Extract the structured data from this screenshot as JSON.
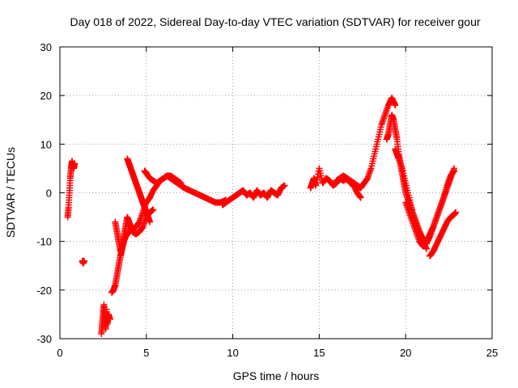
{
  "chart_data": {
    "type": "scatter",
    "title": "Day 018 of 2022, Sidereal Day-to-day VTEC variation (SDTVAR) for receiver gour",
    "xlabel": "GPS time / hours",
    "ylabel": "SDTVAR / TECUs",
    "xlim": [
      0,
      25
    ],
    "ylim": [
      -30,
      30
    ],
    "xticks": [
      0,
      5,
      10,
      15,
      20,
      25
    ],
    "yticks": [
      -30,
      -20,
      -10,
      0,
      10,
      20,
      30
    ],
    "xtick_labels": [
      "0",
      "5",
      "10",
      "15",
      "20",
      "25"
    ],
    "ytick_labels": [
      "-30",
      "-20",
      "-10",
      "0",
      "10",
      "20",
      "30"
    ],
    "grid": true,
    "marker": "+",
    "color": "#ff0000",
    "series": [
      {
        "name": "seg1",
        "x": [
          0.45,
          0.5,
          0.55,
          0.6,
          0.65,
          0.7,
          0.75,
          0.8,
          0.85
        ],
        "y": [
          -5,
          -3,
          0,
          3,
          5,
          6.5,
          5.5,
          5,
          6
        ]
      },
      {
        "name": "seg2",
        "x": [
          1.3,
          1.35,
          1.4
        ],
        "y": [
          -14,
          -14.5,
          -14
        ]
      },
      {
        "name": "seg3",
        "x": [
          2.4,
          2.45,
          2.5,
          2.55,
          2.6,
          2.65,
          2.7,
          2.75,
          2.8,
          2.9
        ],
        "y": [
          -29,
          -27,
          -25,
          -23,
          -26,
          -28,
          -24,
          -27,
          -25,
          -26
        ]
      },
      {
        "name": "seg4",
        "x": [
          3.0,
          3.1,
          3.2,
          3.3,
          3.4,
          3.5,
          3.6,
          3.7,
          3.8,
          3.9,
          4.0,
          4.2,
          4.4,
          4.6,
          4.8,
          5.0,
          5.2,
          5.4,
          5.6,
          5.8,
          6.0,
          6.2,
          6.4,
          6.6,
          6.8,
          7.0,
          7.2,
          7.5,
          7.8,
          8.1,
          8.4,
          8.7,
          9.0,
          9.3,
          9.6
        ],
        "y": [
          -20.5,
          -20,
          -19,
          -17,
          -15,
          -13,
          -11.5,
          -10,
          -9,
          -8.5,
          -8,
          -7.5,
          -7,
          -6,
          -4,
          -2,
          -1,
          0.5,
          1.5,
          2.5,
          3,
          3.5,
          3,
          2.5,
          2,
          1.5,
          1,
          0.5,
          0,
          -0.5,
          -1,
          -1.5,
          -2,
          -2,
          -1.5
        ]
      },
      {
        "name": "seg5",
        "x": [
          3.2,
          3.3,
          3.4,
          3.5,
          3.6,
          3.7,
          3.8,
          3.9,
          4.0,
          4.1,
          4.2,
          4.4,
          4.6,
          4.8,
          5.0,
          5.2,
          5.4
        ],
        "y": [
          -6,
          -8,
          -10,
          -12,
          -11,
          -9,
          -7,
          -5,
          -6,
          -7,
          -8,
          -8.5,
          -8,
          -7,
          -5,
          -4,
          -3.5
        ]
      },
      {
        "name": "seg6",
        "x": [
          3.9,
          4.0,
          4.1,
          4.2,
          4.3,
          4.4,
          4.5,
          4.6,
          4.7,
          4.8,
          4.9,
          5.0,
          5.1,
          5.2
        ],
        "y": [
          7,
          6,
          5,
          4,
          3,
          2,
          1,
          0,
          -1,
          -2,
          -3,
          -4,
          -5,
          -6
        ]
      },
      {
        "name": "seg7",
        "x": [
          4.9,
          5.0,
          5.2,
          5.4,
          5.6,
          5.8,
          6.0,
          6.2,
          6.4,
          6.6,
          6.8,
          7.0
        ],
        "y": [
          4.5,
          4,
          3,
          2.5,
          2,
          2.5,
          3,
          3.5,
          3.5,
          3,
          2.5,
          2
        ]
      },
      {
        "name": "seg8",
        "x": [
          9.4,
          9.6,
          9.8,
          10.0,
          10.2,
          10.4,
          10.6,
          10.8,
          11.0,
          11.2,
          11.4,
          11.6,
          11.8,
          12.0,
          12.2,
          12.4,
          12.6,
          12.8,
          13.0
        ],
        "y": [
          -2.5,
          -2,
          -1.5,
          -1,
          -0.5,
          0,
          0.5,
          -0.5,
          0,
          -1,
          0.5,
          -0.5,
          0,
          -1,
          0.5,
          0,
          -0.5,
          1,
          1.5
        ]
      },
      {
        "name": "seg9",
        "x": [
          14.5,
          14.6,
          14.7,
          14.8,
          15.0,
          15.2,
          15.4,
          15.6,
          15.8,
          16.0,
          16.2,
          16.4,
          16.6,
          16.8,
          17.0,
          17.2,
          17.4
        ],
        "y": [
          1,
          2,
          3,
          1.5,
          5,
          2,
          3,
          2.5,
          1.5,
          2,
          3,
          2.5,
          3,
          2,
          1.5,
          0,
          -1
        ]
      },
      {
        "name": "seg10",
        "x": [
          16.0,
          16.2,
          16.4,
          16.6,
          16.8,
          17.0,
          17.2,
          17.4,
          17.6,
          17.8,
          18.0,
          18.2,
          18.4,
          18.6,
          18.8,
          19.0,
          19.2,
          19.4
        ],
        "y": [
          2.5,
          3,
          3.5,
          3,
          2.5,
          2,
          1.5,
          1,
          2,
          3,
          5,
          8,
          11,
          14,
          16,
          18,
          19.5,
          18
        ]
      },
      {
        "name": "seg11",
        "x": [
          18.9,
          19.0,
          19.1,
          19.2,
          19.3,
          19.4,
          19.5,
          19.6,
          19.7,
          19.8,
          19.9,
          20.0,
          20.2,
          20.4,
          20.6,
          20.8,
          21.0,
          21.2
        ],
        "y": [
          11,
          12,
          14,
          16,
          15,
          13,
          11,
          8,
          6,
          4,
          2,
          0,
          -2,
          -4,
          -6,
          -8,
          -10,
          -11.5
        ]
      },
      {
        "name": "seg12",
        "x": [
          19.4,
          19.5,
          19.6,
          19.8,
          20.0,
          20.2,
          20.4,
          20.6,
          20.8,
          21.0,
          21.2,
          21.4,
          21.6,
          21.8,
          22.0,
          22.2,
          22.4,
          22.6,
          22.8
        ],
        "y": [
          9,
          8,
          7,
          5,
          2,
          -1,
          -4,
          -6,
          -8,
          -9.5,
          -10.5,
          -9,
          -7,
          -5,
          -3,
          -1,
          1,
          3,
          5
        ]
      },
      {
        "name": "seg13",
        "x": [
          21.4,
          21.6,
          21.8,
          22.0,
          22.2,
          22.4,
          22.6,
          22.8,
          22.9
        ],
        "y": [
          -13,
          -12,
          -10.5,
          -9,
          -7.5,
          -6,
          -5,
          -4.5,
          -4
        ]
      },
      {
        "name": "seg14",
        "x": [
          20.0,
          20.2,
          20.4,
          20.6,
          20.8,
          21.0,
          21.2,
          21.4,
          21.6,
          21.8,
          22.0,
          22.2,
          22.4,
          22.6,
          22.8
        ],
        "y": [
          -2,
          -4,
          -6,
          -8,
          -10,
          -11,
          -10,
          -8.5,
          -7,
          -5,
          -3,
          -1,
          1.5,
          3.5,
          4.5
        ]
      }
    ]
  }
}
